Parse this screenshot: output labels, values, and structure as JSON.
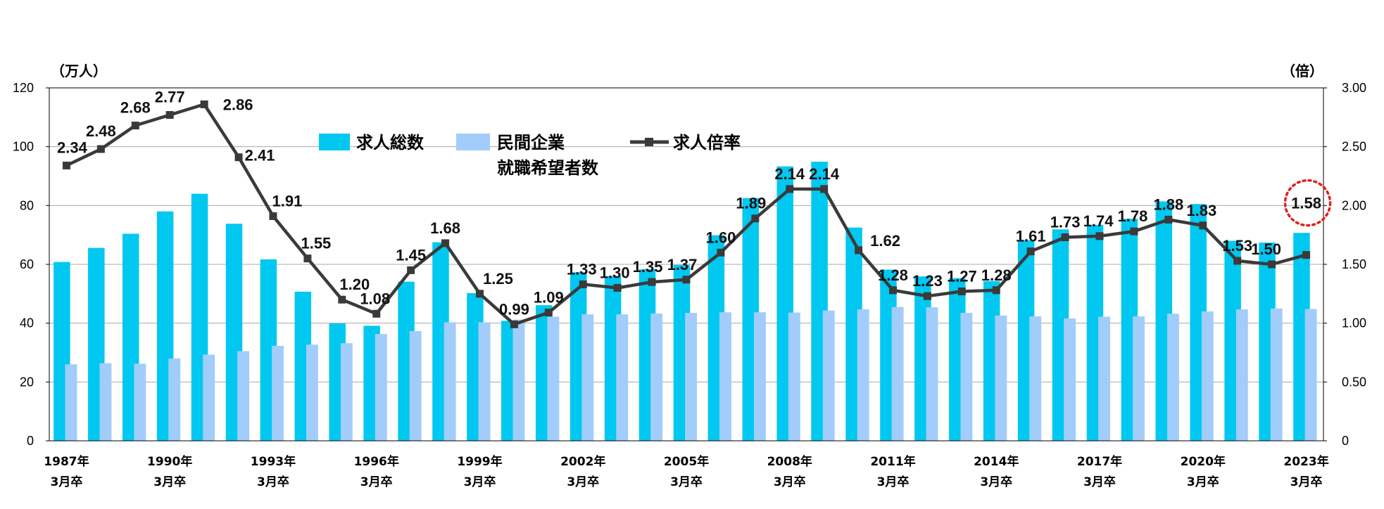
{
  "chart_data": {
    "type": "bar",
    "left_unit": "（万人）",
    "right_unit": "（倍）",
    "y_left": {
      "min": 0,
      "max": 120,
      "ticks": [
        "0",
        "20",
        "40",
        "60",
        "80",
        "100",
        "120"
      ]
    },
    "y_right": {
      "min": 0,
      "max": 3,
      "ticks": [
        "0",
        "0.50",
        "1.00",
        "1.50",
        "2.00",
        "2.50",
        "3.00"
      ]
    },
    "x_tick_labels": [
      {
        "index": 0,
        "line1": "1987年",
        "line2": "3月卒"
      },
      {
        "index": 3,
        "line1": "1990年",
        "line2": "3月卒"
      },
      {
        "index": 6,
        "line1": "1993年",
        "line2": "3月卒"
      },
      {
        "index": 9,
        "line1": "1996年",
        "line2": "3月卒"
      },
      {
        "index": 12,
        "line1": "1999年",
        "line2": "3月卒"
      },
      {
        "index": 15,
        "line1": "2002年",
        "line2": "3月卒"
      },
      {
        "index": 18,
        "line1": "2005年",
        "line2": "3月卒"
      },
      {
        "index": 21,
        "line1": "2008年",
        "line2": "3月卒"
      },
      {
        "index": 24,
        "line1": "2011年",
        "line2": "3月卒"
      },
      {
        "index": 27,
        "line1": "2014年",
        "line2": "3月卒"
      },
      {
        "index": 30,
        "line1": "2017年",
        "line2": "3月卒"
      },
      {
        "index": 33,
        "line1": "2020年",
        "line2": "3月卒"
      },
      {
        "index": 36,
        "line1": "2023年",
        "line2": "3月卒"
      }
    ],
    "series": [
      {
        "name": "求人総数",
        "kind": "bar",
        "axis": "left",
        "color": "#00c8f0",
        "values": [
          60.8,
          65.6,
          70.4,
          78.0,
          84.0,
          73.8,
          61.7,
          50.7,
          39.9,
          39.1,
          54.1,
          67.5,
          50.2,
          40.8,
          46.1,
          57.3,
          56.0,
          58.3,
          59.8,
          69.9,
          82.5,
          93.3,
          94.9,
          72.5,
          58.2,
          55.9,
          55.3,
          54.3,
          68.2,
          71.9,
          73.4,
          75.5,
          81.4,
          80.5,
          68.0,
          67.4,
          70.7
        ]
      },
      {
        "name": "民間企業就職希望者数",
        "name_line1": "民間企業",
        "name_line2": "就職希望者数",
        "kind": "bar",
        "axis": "left",
        "color": "#a2cdfa",
        "values": [
          26.0,
          26.4,
          26.2,
          28.0,
          29.3,
          30.5,
          32.3,
          32.7,
          33.2,
          36.3,
          37.3,
          40.3,
          40.3,
          41.2,
          42.2,
          43.0,
          43.0,
          43.3,
          43.5,
          43.7,
          43.7,
          43.6,
          44.3,
          44.7,
          45.5,
          45.4,
          43.5,
          42.6,
          42.3,
          41.6,
          42.2,
          42.3,
          43.2,
          44.0,
          44.7,
          45.0,
          44.8
        ]
      },
      {
        "name": "求人倍率",
        "kind": "line",
        "axis": "right",
        "color": "#3a3a3a",
        "values": [
          2.34,
          2.48,
          2.68,
          2.77,
          2.86,
          2.41,
          1.91,
          1.55,
          1.2,
          1.08,
          1.45,
          1.68,
          1.25,
          0.99,
          1.09,
          1.33,
          1.3,
          1.35,
          1.37,
          1.6,
          1.89,
          2.14,
          2.14,
          1.62,
          1.28,
          1.23,
          1.27,
          1.28,
          1.61,
          1.73,
          1.74,
          1.78,
          1.88,
          1.83,
          1.53,
          1.5,
          1.58
        ],
        "labels": [
          "2.34",
          "2.48",
          "2.68",
          "2.77",
          "2.86",
          "2.41",
          "1.91",
          "1.55",
          "1.20",
          "1.08",
          "1.45",
          "1.68",
          "1.25",
          "0.99",
          "1.09",
          "1.33",
          "1.30",
          "1.35",
          "1.37",
          "1.60",
          "1.89",
          "2.14",
          "2.14",
          "1.62",
          "1.28",
          "1.23",
          "1.27",
          "1.28",
          "1.61",
          "1.73",
          "1.74",
          "1.78",
          "1.88",
          "1.83",
          "1.53",
          "1.50",
          "1.58"
        ]
      }
    ],
    "highlight_index": 36,
    "highlight_color": "#e02020",
    "legend_position": "top-center",
    "grid": true
  }
}
